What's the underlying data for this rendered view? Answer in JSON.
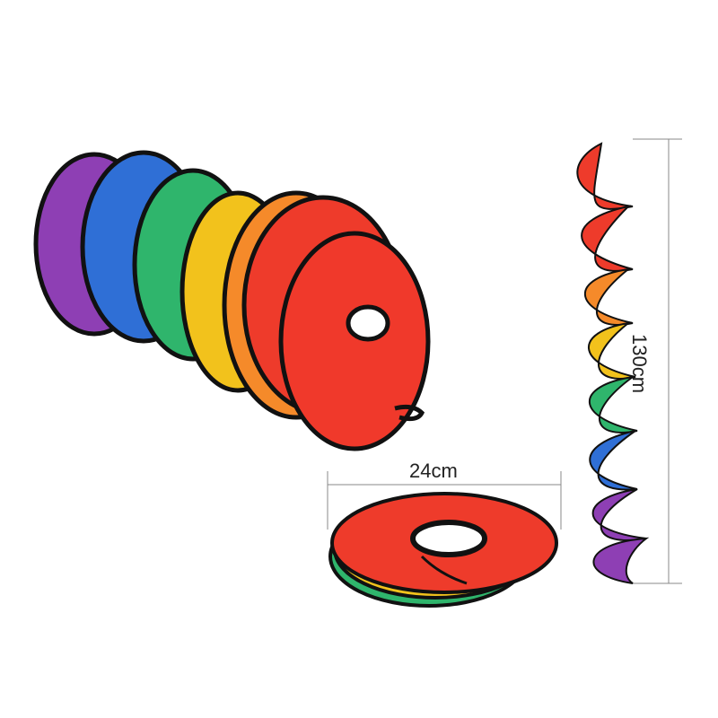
{
  "product": {
    "width_label": "24cm",
    "length_label": "130cm",
    "colors": [
      "#8e3fb4",
      "#2f6fd6",
      "#2fb56c",
      "#f2c21c",
      "#f58a2a",
      "#ee3b2b"
    ]
  }
}
